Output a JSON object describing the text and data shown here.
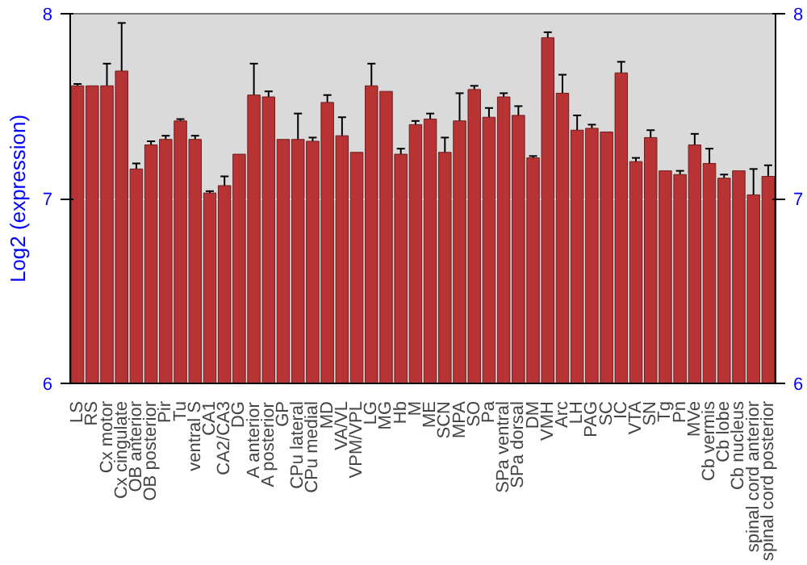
{
  "chart_data": {
    "type": "bar",
    "ylabel": "Log2 (expression)",
    "categories": [
      "LS",
      "RS",
      "Cx motor",
      "Cx cingulate",
      "OB anterior",
      "OB posterior",
      "Pir",
      "Tu",
      "ventral S",
      "CA1",
      "CA2/CA3",
      "DG",
      "A anterior",
      "A posterior",
      "GP",
      "CPu lateral",
      "CPu medial",
      "MD",
      "VA/VL",
      "VPM/VPL",
      "LG",
      "MG",
      "Hb",
      "M",
      "ME",
      "SCN",
      "MPA",
      "SO",
      "Pa",
      "SPa ventral",
      "SPa dorsal",
      "DM",
      "VMH",
      "Arc",
      "LH",
      "PAG",
      "SC",
      "IC",
      "VTA",
      "SN",
      "Tg",
      "Pn",
      "MVe",
      "Cb vermis",
      "Cb lobe",
      "Cb nucleus",
      "spinal cord anterior",
      "spinal cord posterior"
    ],
    "values": [
      7.61,
      7.61,
      7.61,
      7.69,
      7.16,
      7.29,
      7.32,
      7.42,
      7.32,
      7.03,
      7.07,
      7.24,
      7.56,
      7.55,
      7.32,
      7.32,
      7.31,
      7.52,
      7.34,
      7.25,
      7.61,
      7.58,
      7.24,
      7.4,
      7.43,
      7.25,
      7.42,
      7.59,
      7.44,
      7.55,
      7.45,
      7.22,
      7.87,
      7.57,
      7.37,
      7.38,
      7.36,
      7.68,
      7.2,
      7.33,
      7.15,
      7.13,
      7.29,
      7.19,
      7.11,
      7.15,
      7.02,
      7.12
    ],
    "errors": [
      0.01,
      null,
      0.12,
      0.26,
      0.03,
      0.02,
      0.02,
      0.01,
      0.02,
      0.01,
      0.05,
      null,
      0.17,
      0.03,
      null,
      0.14,
      0.02,
      0.04,
      0.1,
      null,
      0.12,
      null,
      0.03,
      0.02,
      0.03,
      0.08,
      0.15,
      0.02,
      0.05,
      0.02,
      0.05,
      0.01,
      0.03,
      0.1,
      0.08,
      0.02,
      null,
      0.06,
      0.02,
      0.04,
      null,
      0.02,
      0.06,
      0.08,
      0.02,
      null,
      0.14,
      0.06
    ],
    "color": "#b83333",
    "ylim": [
      6,
      8
    ],
    "yticks": [
      6,
      7,
      8
    ],
    "y2lim": [
      6,
      8
    ],
    "y2ticks": [
      6,
      7,
      8
    ],
    "grid": "y"
  }
}
